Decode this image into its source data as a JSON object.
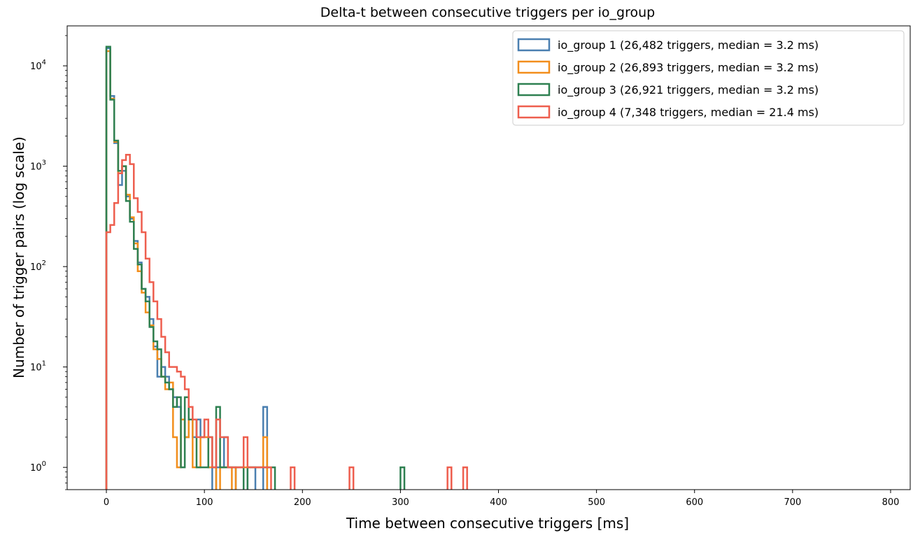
{
  "chart_data": {
    "type": "histogram-step",
    "title": "Delta-t between consecutive triggers per io_group",
    "xlabel": "Time between consecutive triggers  [ms]",
    "ylabel": "Number of trigger pairs  (log scale)",
    "xlim": [
      -40,
      820
    ],
    "ylim": [
      0.6,
      25000
    ],
    "yscale": "log",
    "grid": false,
    "legend_position": "top-right",
    "x_ticks": [
      0,
      100,
      200,
      300,
      400,
      500,
      600,
      700,
      800
    ],
    "x_tick_labels": [
      "0",
      "100",
      "200",
      "300",
      "400",
      "500",
      "600",
      "700",
      "800"
    ],
    "y_ticks": [
      1,
      10,
      100,
      1000,
      10000
    ],
    "y_tick_bases": [
      "10",
      "10",
      "10",
      "10",
      "10"
    ],
    "y_tick_exps": [
      "0",
      "1",
      "2",
      "3",
      "4"
    ],
    "bin_width": 4,
    "bin_start": 0,
    "series": [
      {
        "name": "io_group 1  (26,482 triggers,  median = 3.2 ms)",
        "color": "#4a7fb0",
        "counts": [
          15000,
          5000,
          1700,
          650,
          900,
          500,
          300,
          180,
          110,
          60,
          50,
          30,
          16,
          8,
          10,
          8,
          6,
          5,
          4,
          3,
          2,
          3,
          2,
          3,
          2,
          3,
          1,
          0,
          1,
          1,
          2,
          1,
          1,
          0,
          0,
          0,
          1,
          1,
          0,
          0,
          4
        ]
      },
      {
        "name": "io_group 2  (26,893 triggers,  median = 3.2 ms)",
        "color": "#f28e1c",
        "counts": [
          14000,
          4700,
          1750,
          850,
          1000,
          520,
          310,
          170,
          90,
          55,
          35,
          26,
          15,
          12,
          8,
          6,
          7,
          2,
          1,
          3,
          2,
          3,
          1,
          1,
          2,
          2,
          1,
          1,
          0,
          1,
          1,
          1,
          0,
          1,
          1,
          1,
          1,
          1,
          1,
          1,
          2
        ]
      },
      {
        "name": "io_group 3  (26,921 triggers,  median = 3.2 ms)",
        "color": "#2e8051",
        "counts": [
          15500,
          4600,
          1800,
          900,
          1000,
          450,
          280,
          150,
          105,
          60,
          45,
          25,
          18,
          15,
          8,
          7,
          6,
          4,
          5,
          1,
          5,
          3,
          3,
          1,
          1,
          1,
          2,
          1,
          4,
          1,
          1,
          1,
          1,
          1,
          1,
          0,
          1,
          1,
          1,
          1,
          1,
          1,
          1,
          0,
          0,
          0,
          0,
          0,
          0,
          0,
          0,
          0,
          0,
          0,
          0,
          0,
          0,
          0,
          0,
          0,
          0,
          0,
          0,
          0,
          0,
          0,
          0,
          0,
          0,
          0,
          0,
          0,
          0,
          0,
          0,
          1
        ]
      },
      {
        "name": "io_group 4  (7,348 triggers,  median = 21.4 ms)",
        "color": "#ee5e4e",
        "counts": [
          220,
          260,
          430,
          850,
          1150,
          1300,
          1050,
          480,
          350,
          220,
          120,
          70,
          45,
          30,
          20,
          14,
          10,
          10,
          9,
          8,
          6,
          4,
          3,
          2,
          2,
          3,
          2,
          1,
          3,
          2,
          2,
          1,
          1,
          1,
          1,
          2,
          1,
          1,
          1,
          1,
          1,
          1,
          0,
          0,
          0,
          0,
          0,
          1,
          0,
          0,
          0,
          0,
          0,
          0,
          0,
          0,
          0,
          0,
          0,
          0,
          0,
          0,
          1,
          0,
          0,
          0,
          0,
          0,
          0,
          0,
          0,
          0,
          0,
          0,
          0,
          0,
          0,
          0,
          0,
          0,
          0,
          0,
          0,
          0,
          0,
          0,
          0,
          1,
          0,
          0,
          0,
          1
        ]
      }
    ]
  }
}
